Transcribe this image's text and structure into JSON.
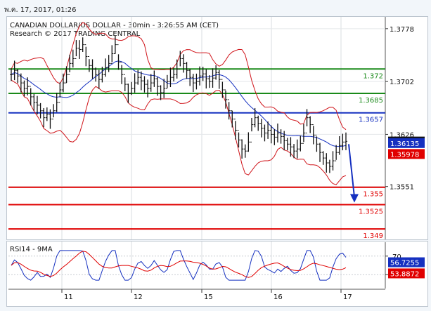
{
  "header": {
    "datetime": "พ.ค. 17, 2017, 01:26"
  },
  "chart_data": [
    {
      "type": "line",
      "title": "CANADIAN DOLLAR/US DOLLAR - 30min - 3:26:55 AM (CET)",
      "subtitle": "Research © 2017 TRADING CENTRAL",
      "x_tick_labels": [
        "11",
        "12",
        "15",
        "16",
        "17"
      ],
      "y_ticks": [
        "1.3778",
        "1.3702",
        "1.3626",
        "1.3551"
      ],
      "ylim": [
        1.3475,
        1.3795
      ],
      "levels": [
        {
          "value": 1.372,
          "label": "1.372",
          "color": "#1a8a1a"
        },
        {
          "value": 1.3685,
          "label": "1.3685",
          "color": "#1a8a1a"
        },
        {
          "value": 1.3657,
          "label": "1.3657",
          "color": "#1530c0"
        },
        {
          "value": 1.355,
          "label": "1.355",
          "color": "#e00000"
        },
        {
          "value": 1.3525,
          "label": "1.3525",
          "color": "#e00000"
        },
        {
          "value": 1.349,
          "label": "1.349",
          "color": "#e00000"
        }
      ],
      "badges": [
        {
          "value": 1.36157,
          "label": "1.36157",
          "bg": "#111111"
        },
        {
          "value": 1.36135,
          "label": "1.36135",
          "bg": "#1530c0"
        },
        {
          "value": 1.35978,
          "label": "1.35978",
          "bg": "#e00000"
        }
      ],
      "price_path": [
        1.3712,
        1.3718,
        1.371,
        1.37,
        1.3692,
        1.3695,
        1.368,
        1.3672,
        1.3668,
        1.366,
        1.365,
        1.3655,
        1.3648,
        1.366,
        1.3672,
        1.369,
        1.37,
        1.3712,
        1.3728,
        1.3735,
        1.375,
        1.3748,
        1.3755,
        1.3738,
        1.3725,
        1.372,
        1.3712,
        1.3705,
        1.3712,
        1.3722,
        1.3728,
        1.3742,
        1.3755,
        1.373,
        1.3712,
        1.3698,
        1.3685,
        1.3692,
        1.37,
        1.3708,
        1.3703,
        1.3698,
        1.3692,
        1.37,
        1.3706,
        1.3695,
        1.3686,
        1.3692,
        1.3702,
        1.3708,
        1.3712,
        1.372,
        1.3735,
        1.3728,
        1.3718,
        1.3708,
        1.37,
        1.3702,
        1.371,
        1.3713,
        1.3706,
        1.3702,
        1.3707,
        1.3715,
        1.3705,
        1.369,
        1.3676,
        1.366,
        1.3648,
        1.3632,
        1.3618,
        1.3605,
        1.3602,
        1.3615,
        1.364,
        1.365,
        1.3642,
        1.3635,
        1.3628,
        1.3632,
        1.3626,
        1.3622,
        1.3628,
        1.3623,
        1.3617,
        1.3612,
        1.3608,
        1.3602,
        1.3605,
        1.3613,
        1.3628,
        1.365,
        1.364,
        1.3625,
        1.3612,
        1.36,
        1.3592,
        1.3585,
        1.358,
        1.3588,
        1.36,
        1.361,
        1.3615,
        1.3616
      ],
      "rsi": {
        "title": "RSI14 - 9MA",
        "ylim": [
          0,
          100
        ],
        "y_ticks": [
          "70",
          "30"
        ],
        "rsi_label": "56.7255",
        "ma_label": "53.8872",
        "rsi_color": "#1530c0",
        "ma_color": "#e00000"
      }
    }
  ]
}
